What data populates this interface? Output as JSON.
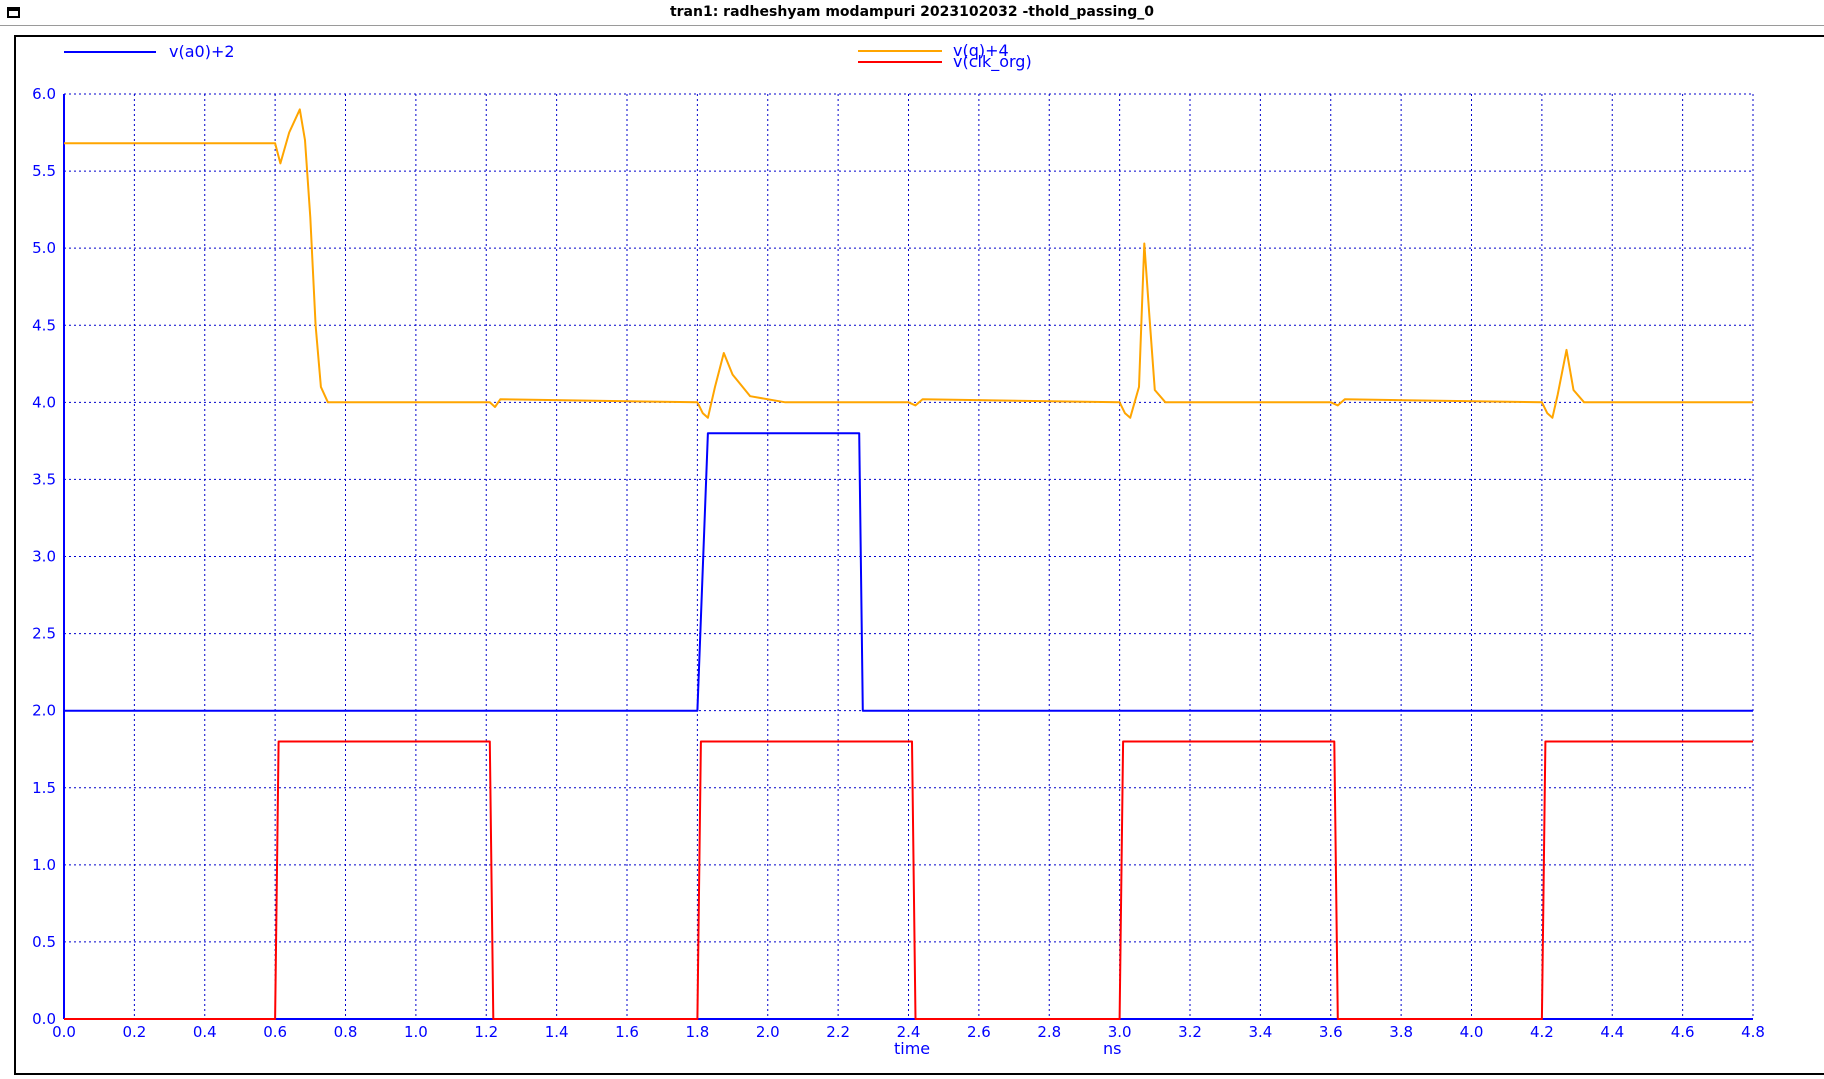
{
  "window": {
    "title": "tran1: radheshyam modampuri 2023102032 -thold_passing_0"
  },
  "colors": {
    "axis": "#0000ff",
    "grid": "#0000cc",
    "background": "#ffffff"
  },
  "chart_data": {
    "type": "line",
    "title": "tran1: radheshyam modampuri 2023102032 -thold_passing_0",
    "xlabel": "time",
    "xunit": "ns",
    "ylabel": "",
    "xlim": [
      0,
      4.8
    ],
    "ylim": [
      0,
      6
    ],
    "grid": true,
    "legend_placement": "top",
    "xticks": [
      "0.0",
      "0.2",
      "0.4",
      "0.6",
      "0.8",
      "1.0",
      "1.2",
      "1.4",
      "1.6",
      "1.8",
      "2.0",
      "2.2",
      "2.4",
      "2.6",
      "2.8",
      "3.0",
      "3.2",
      "3.4",
      "3.6",
      "3.8",
      "4.0",
      "4.2",
      "4.4",
      "4.6",
      "4.8"
    ],
    "yticks": [
      "0.0",
      "0.5",
      "1.0",
      "1.5",
      "2.0",
      "2.5",
      "3.0",
      "3.5",
      "4.0",
      "4.5",
      "5.0",
      "5.5",
      "6.0"
    ],
    "series": [
      {
        "name": "v(a0)+2",
        "color": "#0000ff",
        "x": [
          0,
          1.8,
          1.83,
          2.26,
          2.27,
          4.8
        ],
        "y": [
          2.0,
          2.0,
          3.8,
          3.8,
          2.0,
          2.0
        ]
      },
      {
        "name": "v(q)+4",
        "color": "#ffa500",
        "x": [
          0,
          0.6,
          0.615,
          0.64,
          0.67,
          0.685,
          0.7,
          0.715,
          0.73,
          0.75,
          0.77,
          1.21,
          1.225,
          1.24,
          1.8,
          1.815,
          1.83,
          1.85,
          1.875,
          1.9,
          1.95,
          2.05,
          2.4,
          2.42,
          2.44,
          3.0,
          3.015,
          3.03,
          3.055,
          3.07,
          3.085,
          3.1,
          3.13,
          3.6,
          3.62,
          3.64,
          4.2,
          4.215,
          4.23,
          4.245,
          4.27,
          4.29,
          4.32,
          4.8
        ],
        "y": [
          5.68,
          5.68,
          5.55,
          5.75,
          5.9,
          5.7,
          5.2,
          4.5,
          4.1,
          4.0,
          4.0,
          4.0,
          3.97,
          4.02,
          4.0,
          3.93,
          3.9,
          4.1,
          4.32,
          4.18,
          4.04,
          4.0,
          4.0,
          3.98,
          4.02,
          4.0,
          3.93,
          3.9,
          4.1,
          5.03,
          4.55,
          4.08,
          4.0,
          4.0,
          3.98,
          4.02,
          4.0,
          3.93,
          3.9,
          4.05,
          4.34,
          4.08,
          4.0,
          4.0
        ]
      },
      {
        "name": "v(clk_org)",
        "color": "#ff0000",
        "x": [
          0,
          0.6,
          0.61,
          1.21,
          1.22,
          1.8,
          1.81,
          2.41,
          2.42,
          3.0,
          3.01,
          3.61,
          3.62,
          4.2,
          4.21,
          4.8
        ],
        "y": [
          0.0,
          0.0,
          1.8,
          1.8,
          0.0,
          0.0,
          1.8,
          1.8,
          0.0,
          0.0,
          1.8,
          1.8,
          0.0,
          0.0,
          1.8,
          1.8
        ]
      }
    ]
  }
}
